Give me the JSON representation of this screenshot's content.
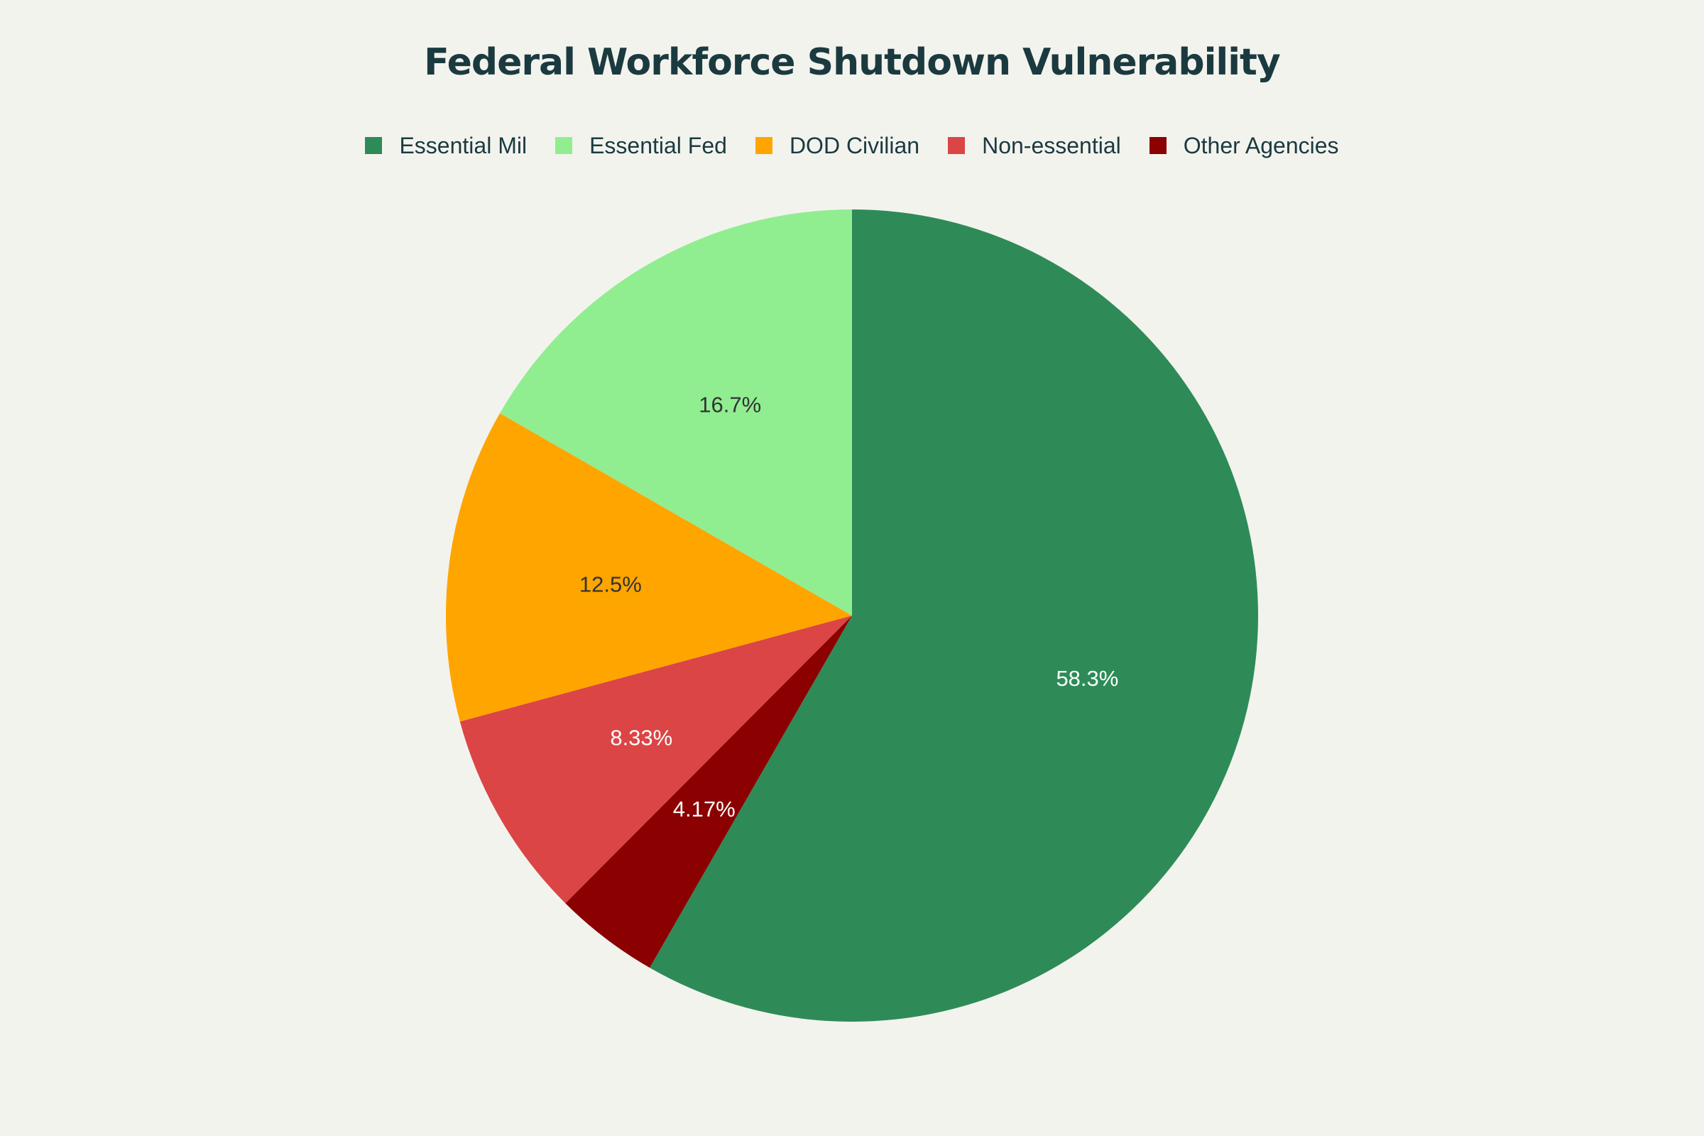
{
  "chart_data": {
    "type": "pie",
    "title": "Federal Workforce Shutdown Vulnerability",
    "legend_position": "top",
    "direction": "clockwise",
    "start_angle": "top",
    "slices": [
      {
        "name": "Essential Mil",
        "value": 58.3,
        "label": "58.3%",
        "color": "#2e8b57",
        "label_color": "#ffffff"
      },
      {
        "name": "Other Agencies",
        "value": 4.17,
        "label": "4.17%",
        "color": "#8b0000",
        "label_color": "#ffffff"
      },
      {
        "name": "Non-essential",
        "value": 8.33,
        "label": "8.33%",
        "color": "#db4545",
        "label_color": "#ffffff"
      },
      {
        "name": "DOD Civilian",
        "value": 12.5,
        "label": "12.5%",
        "color": "#ffa500",
        "label_color": "#333333"
      },
      {
        "name": "Essential Fed",
        "value": 16.7,
        "label": "16.7%",
        "color": "#90ee90",
        "label_color": "#333333"
      }
    ],
    "legend": [
      {
        "name": "Essential Mil",
        "color": "#2e8b57"
      },
      {
        "name": "Essential Fed",
        "color": "#90ee90"
      },
      {
        "name": "DOD Civilian",
        "color": "#ffa500"
      },
      {
        "name": "Non-essential",
        "color": "#db4545"
      },
      {
        "name": "Other Agencies",
        "color": "#8b0000"
      }
    ]
  }
}
